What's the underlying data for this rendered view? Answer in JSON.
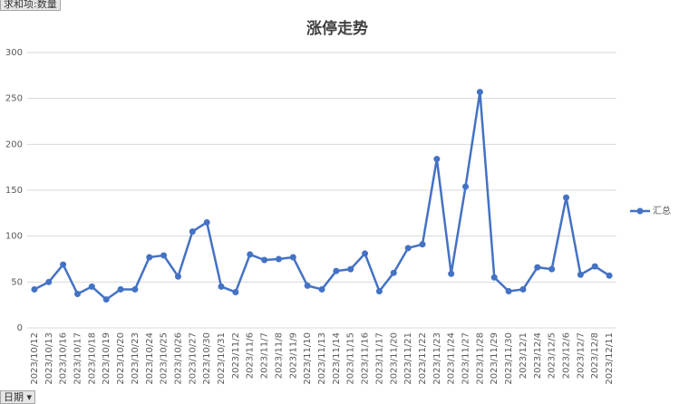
{
  "chart_data": {
    "type": "line",
    "title": "涨停走势",
    "value_button": "求和项:数量",
    "category_button": "日期",
    "categories": [
      "2023/10/12",
      "2023/10/13",
      "2023/10/16",
      "2023/10/17",
      "2023/10/18",
      "2023/10/19",
      "2023/10/20",
      "2023/10/23",
      "2023/10/24",
      "2023/10/25",
      "2023/10/26",
      "2023/10/27",
      "2023/10/30",
      "2023/10/31",
      "2023/11/2",
      "2023/11/6",
      "2023/11/7",
      "2023/11/8",
      "2023/11/9",
      "2023/11/10",
      "2023/11/13",
      "2023/11/14",
      "2023/11/15",
      "2023/11/16",
      "2023/11/17",
      "2023/11/20",
      "2023/11/21",
      "2023/11/22",
      "2023/11/23",
      "2023/11/24",
      "2023/11/27",
      "2023/11/28",
      "2023/11/29",
      "2023/11/30",
      "2023/12/1",
      "2023/12/4",
      "2023/12/5",
      "2023/12/6",
      "2023/12/7",
      "2023/12/8",
      "2023/12/11"
    ],
    "series": [
      {
        "name": "汇总",
        "color": "#4472c4",
        "values": [
          42,
          50,
          69,
          37,
          45,
          31,
          42,
          42,
          77,
          79,
          56,
          105,
          115,
          45,
          39,
          80,
          74,
          75,
          77,
          46,
          42,
          62,
          64,
          81,
          40,
          60,
          87,
          91,
          184,
          59,
          154,
          257,
          55,
          40,
          42,
          66,
          64,
          142,
          58,
          67,
          57
        ]
      }
    ],
    "ylim": [
      0,
      300
    ],
    "yticks": [
      0,
      50,
      100,
      150,
      200,
      250,
      300
    ],
    "grid": true,
    "legend": "right"
  }
}
